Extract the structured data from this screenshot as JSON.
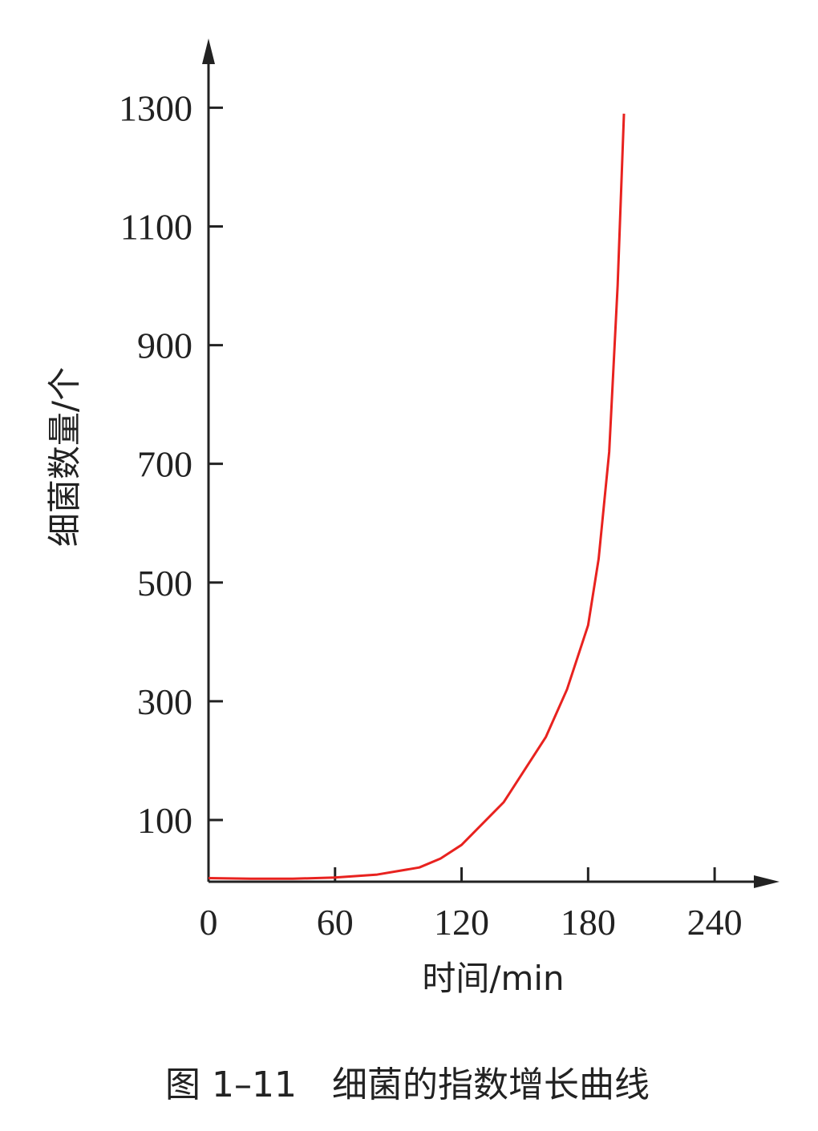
{
  "chart_data": {
    "type": "line",
    "title": "图 1–11　细菌的指数增长曲线",
    "x_label": "时间/min",
    "y_label": "细菌数量/个",
    "x": [
      0,
      20,
      40,
      60,
      80,
      100,
      110,
      120,
      140,
      160,
      170,
      180,
      185,
      190,
      194,
      197
    ],
    "series": [
      {
        "name": "细菌数量",
        "color": "#e8221f",
        "values": [
          2,
          1,
          1,
          3,
          8,
          20,
          35,
          58,
          130,
          240,
          320,
          428,
          540,
          720,
          1000,
          1290
        ]
      }
    ],
    "xlim": [
      0,
      270
    ],
    "xticks": [
      0,
      60,
      120,
      180,
      240
    ],
    "ylim": [
      0,
      1414
    ],
    "yticks": [
      100,
      300,
      500,
      700,
      900,
      1100,
      1300
    ]
  }
}
